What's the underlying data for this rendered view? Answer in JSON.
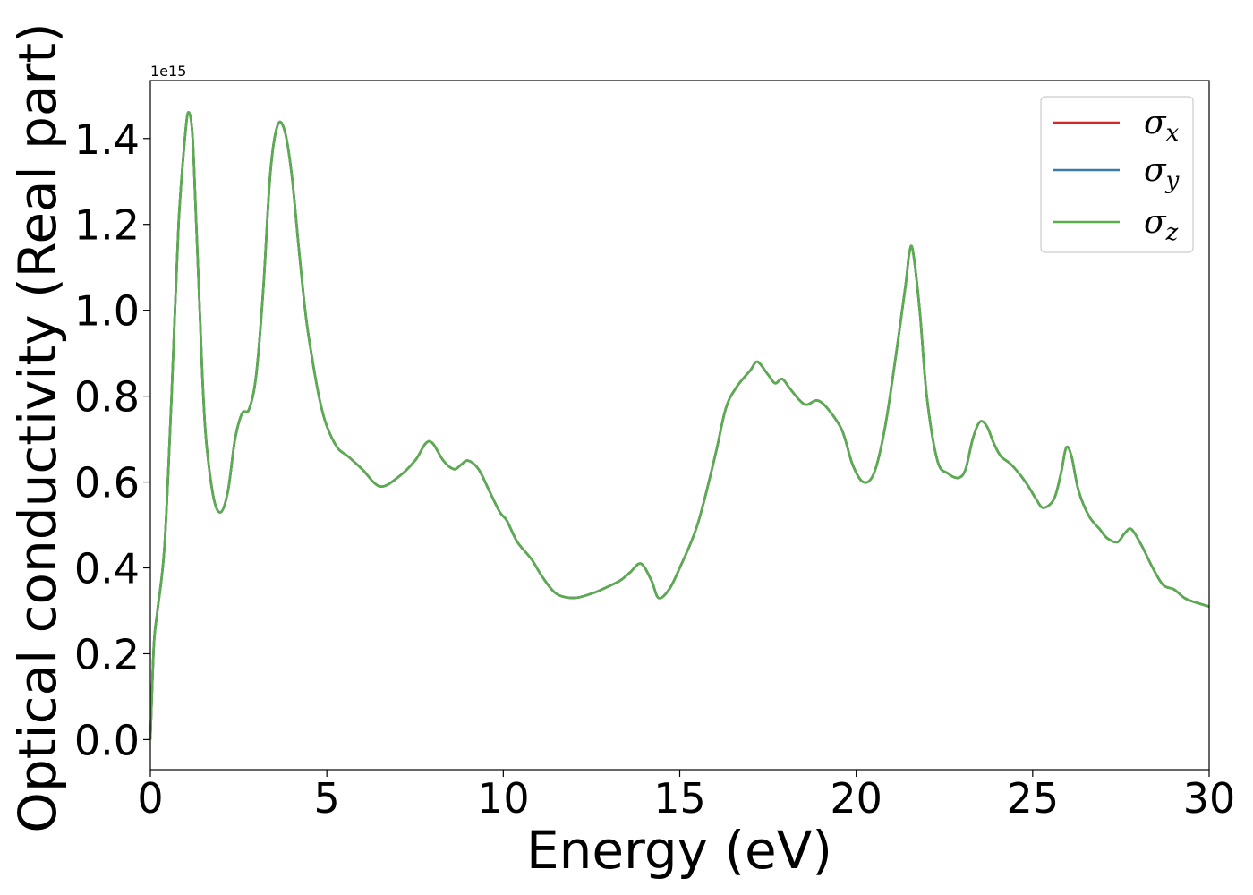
{
  "chart_data": {
    "type": "line",
    "xlabel": "Energy (eV)",
    "ylabel": "Optical conductivity (Real part)",
    "y_offset_label": "1e15",
    "xlim": [
      0,
      30
    ],
    "ylim": [
      -0.07,
      1.535
    ],
    "x_ticks": [
      0,
      5,
      10,
      15,
      20,
      25,
      30
    ],
    "x_tick_labels": [
      "0",
      "5",
      "10",
      "15",
      "20",
      "25",
      "30"
    ],
    "y_ticks": [
      0.0,
      0.2,
      0.4,
      0.6,
      0.8,
      1.0,
      1.2,
      1.4
    ],
    "y_tick_labels": [
      "0.0",
      "0.2",
      "0.4",
      "0.6",
      "0.8",
      "1.0",
      "1.2",
      "1.4"
    ],
    "grid": false,
    "legend_position": "top-right",
    "x": [
      0,
      0.1,
      0.2,
      0.4,
      0.6,
      0.8,
      1.0,
      1.1,
      1.2,
      1.3,
      1.4,
      1.5,
      1.6,
      1.8,
      2.0,
      2.2,
      2.4,
      2.6,
      2.8,
      3.0,
      3.2,
      3.4,
      3.6,
      3.8,
      4.0,
      4.2,
      4.4,
      4.6,
      4.8,
      5.0,
      5.3,
      5.6,
      6.0,
      6.5,
      7.0,
      7.5,
      7.8,
      8.0,
      8.3,
      8.6,
      8.8,
      9.0,
      9.3,
      9.6,
      9.9,
      10.1,
      10.4,
      10.8,
      11.1,
      11.5,
      12.0,
      12.5,
      12.8,
      13.3,
      13.6,
      13.9,
      14.2,
      14.4,
      14.7,
      15.0,
      15.5,
      16.0,
      16.3,
      16.6,
      17.0,
      17.2,
      17.5,
      17.7,
      17.9,
      18.1,
      18.4,
      18.6,
      18.9,
      19.2,
      19.6,
      19.9,
      20.2,
      20.5,
      20.8,
      21.1,
      21.4,
      21.5,
      21.6,
      21.8,
      22.0,
      22.3,
      22.6,
      22.9,
      23.1,
      23.3,
      23.5,
      23.7,
      23.9,
      24.1,
      24.4,
      24.8,
      25.1,
      25.3,
      25.6,
      25.8,
      25.95,
      26.1,
      26.3,
      26.6,
      26.9,
      27.1,
      27.4,
      27.6,
      27.8,
      28.1,
      28.4,
      28.7,
      29.0,
      29.3,
      29.6,
      30.0
    ],
    "series": [
      {
        "name": "σx",
        "color": "#d62728",
        "values": [
          0.0,
          0.22,
          0.3,
          0.45,
          0.8,
          1.2,
          1.42,
          1.46,
          1.4,
          1.2,
          1.0,
          0.8,
          0.68,
          0.56,
          0.53,
          0.58,
          0.7,
          0.76,
          0.77,
          0.85,
          1.05,
          1.32,
          1.43,
          1.42,
          1.32,
          1.15,
          0.99,
          0.88,
          0.79,
          0.73,
          0.68,
          0.66,
          0.63,
          0.59,
          0.61,
          0.65,
          0.69,
          0.69,
          0.65,
          0.63,
          0.64,
          0.65,
          0.63,
          0.58,
          0.53,
          0.51,
          0.46,
          0.42,
          0.38,
          0.34,
          0.33,
          0.34,
          0.35,
          0.37,
          0.39,
          0.41,
          0.37,
          0.33,
          0.35,
          0.4,
          0.5,
          0.66,
          0.77,
          0.82,
          0.86,
          0.88,
          0.85,
          0.83,
          0.84,
          0.82,
          0.79,
          0.78,
          0.79,
          0.77,
          0.72,
          0.64,
          0.6,
          0.62,
          0.72,
          0.88,
          1.06,
          1.13,
          1.14,
          1.0,
          0.8,
          0.65,
          0.62,
          0.61,
          0.63,
          0.7,
          0.74,
          0.73,
          0.69,
          0.66,
          0.64,
          0.6,
          0.56,
          0.54,
          0.56,
          0.62,
          0.68,
          0.66,
          0.58,
          0.52,
          0.49,
          0.47,
          0.46,
          0.48,
          0.49,
          0.45,
          0.4,
          0.36,
          0.35,
          0.33,
          0.32,
          0.31
        ]
      },
      {
        "name": "σy",
        "color": "#3a7ab0",
        "values": [
          0.0,
          0.22,
          0.3,
          0.45,
          0.8,
          1.2,
          1.42,
          1.46,
          1.4,
          1.2,
          1.0,
          0.8,
          0.68,
          0.56,
          0.53,
          0.58,
          0.7,
          0.76,
          0.77,
          0.85,
          1.05,
          1.32,
          1.43,
          1.42,
          1.32,
          1.15,
          0.99,
          0.88,
          0.79,
          0.73,
          0.68,
          0.66,
          0.63,
          0.59,
          0.61,
          0.65,
          0.69,
          0.69,
          0.65,
          0.63,
          0.64,
          0.65,
          0.63,
          0.58,
          0.53,
          0.51,
          0.46,
          0.42,
          0.38,
          0.34,
          0.33,
          0.34,
          0.35,
          0.37,
          0.39,
          0.41,
          0.37,
          0.33,
          0.35,
          0.4,
          0.5,
          0.66,
          0.77,
          0.82,
          0.86,
          0.88,
          0.85,
          0.83,
          0.84,
          0.82,
          0.79,
          0.78,
          0.79,
          0.77,
          0.72,
          0.64,
          0.6,
          0.62,
          0.72,
          0.88,
          1.06,
          1.13,
          1.14,
          1.0,
          0.8,
          0.65,
          0.62,
          0.61,
          0.63,
          0.7,
          0.74,
          0.73,
          0.69,
          0.66,
          0.64,
          0.6,
          0.56,
          0.54,
          0.56,
          0.62,
          0.68,
          0.66,
          0.58,
          0.52,
          0.49,
          0.47,
          0.46,
          0.48,
          0.49,
          0.45,
          0.4,
          0.36,
          0.35,
          0.33,
          0.32,
          0.31
        ]
      },
      {
        "name": "σz",
        "color": "#5aad4e",
        "values": [
          0.0,
          0.22,
          0.3,
          0.45,
          0.8,
          1.2,
          1.42,
          1.46,
          1.4,
          1.2,
          1.0,
          0.8,
          0.68,
          0.56,
          0.53,
          0.58,
          0.7,
          0.76,
          0.77,
          0.85,
          1.05,
          1.32,
          1.43,
          1.42,
          1.32,
          1.15,
          0.99,
          0.88,
          0.79,
          0.73,
          0.68,
          0.66,
          0.63,
          0.59,
          0.61,
          0.65,
          0.69,
          0.69,
          0.65,
          0.63,
          0.64,
          0.65,
          0.63,
          0.58,
          0.53,
          0.51,
          0.46,
          0.42,
          0.38,
          0.34,
          0.33,
          0.34,
          0.35,
          0.37,
          0.39,
          0.41,
          0.37,
          0.33,
          0.35,
          0.4,
          0.5,
          0.66,
          0.77,
          0.82,
          0.86,
          0.88,
          0.85,
          0.83,
          0.84,
          0.82,
          0.79,
          0.78,
          0.79,
          0.77,
          0.72,
          0.64,
          0.6,
          0.62,
          0.72,
          0.88,
          1.06,
          1.13,
          1.14,
          1.0,
          0.8,
          0.65,
          0.62,
          0.61,
          0.63,
          0.7,
          0.74,
          0.73,
          0.69,
          0.66,
          0.64,
          0.6,
          0.56,
          0.54,
          0.56,
          0.62,
          0.68,
          0.66,
          0.58,
          0.52,
          0.49,
          0.47,
          0.46,
          0.48,
          0.49,
          0.45,
          0.4,
          0.36,
          0.35,
          0.33,
          0.32,
          0.31
        ]
      }
    ],
    "legend": [
      {
        "symbol": "σ",
        "subscript": "x"
      },
      {
        "symbol": "σ",
        "subscript": "y"
      },
      {
        "symbol": "σ",
        "subscript": "z"
      }
    ]
  }
}
